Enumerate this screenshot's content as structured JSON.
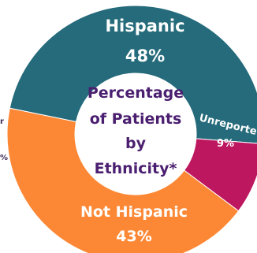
{
  "chart_data": {
    "type": "pie",
    "variant": "donut",
    "center_title_lines": [
      "Percentage",
      "of Patients",
      "by",
      "Ethnicity*"
    ],
    "slices": [
      {
        "name": "Hispanic",
        "value": 48,
        "value_label": "48%",
        "color": "#256b7b"
      },
      {
        "name": "Unreported",
        "visible_name": "Unreporte",
        "value": 9,
        "value_label": "9%",
        "color": "#bd1760"
      },
      {
        "name": "Not Hispanic",
        "value": 43,
        "value_label": "43%",
        "color": "#fc8835"
      }
    ],
    "partial_left_text": {
      "top": "r",
      "bottom": "%"
    }
  }
}
